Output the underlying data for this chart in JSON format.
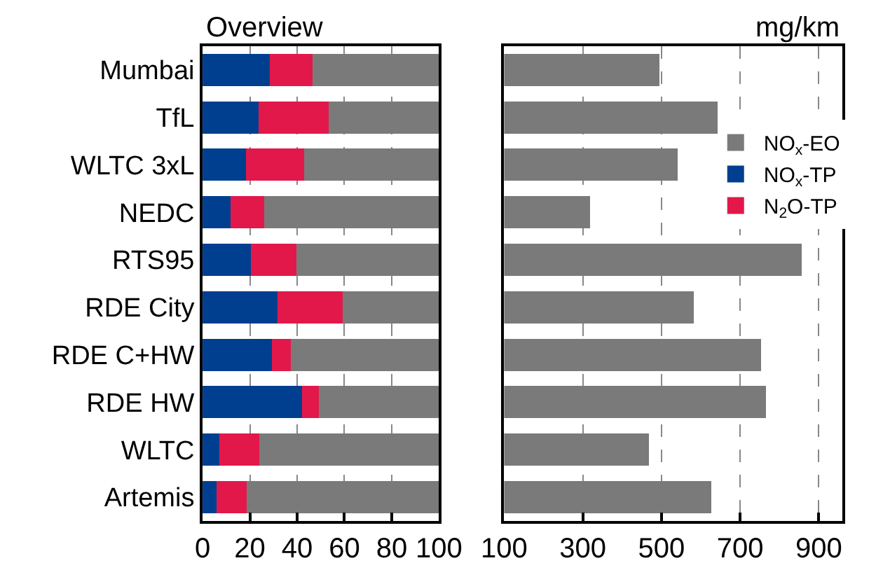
{
  "chart_data": [
    {
      "type": "bar",
      "title": "Overview",
      "orientation": "horizontal",
      "stacked": true,
      "categories": [
        "Mumbai",
        "TfL",
        "WLTC 3xL",
        "NEDC",
        "RTS95",
        "RDE City",
        "RDE C+HW",
        "RDE HW",
        "WLTC",
        "Artemis"
      ],
      "series": [
        {
          "name": "NO$_{x}$-TP",
          "color": "#003f8f",
          "values": [
            28.3,
            23.8,
            18.3,
            11.9,
            20.4,
            31.7,
            29.4,
            42.1,
            7.2,
            5.8
          ]
        },
        {
          "name": "N$_{2}$O-TP",
          "color": "#e2184a",
          "values": [
            18.1,
            29.4,
            24.7,
            14.1,
            19.2,
            27.5,
            8.0,
            7.0,
            16.8,
            12.9
          ]
        },
        {
          "name": "NO$_{x}$-EO",
          "color": "#7a7a7a",
          "values": [
            53.6,
            46.8,
            57.0,
            74.0,
            60.4,
            40.8,
            62.6,
            50.9,
            76.0,
            81.3
          ]
        }
      ],
      "xlim": [
        0,
        100
      ],
      "xticks": [
        0,
        20,
        40,
        60,
        80,
        100
      ],
      "grid": "x",
      "legend": "right"
    },
    {
      "type": "bar",
      "title": "mg/km",
      "orientation": "horizontal",
      "categories": [
        null,
        null,
        null,
        null,
        null,
        null,
        null,
        null,
        null,
        null
      ],
      "series": [
        {
          "color": "#7a7a7a",
          "values": [
            495,
            642,
            541,
            318,
            856,
            582,
            753,
            766,
            468,
            626
          ]
        }
      ],
      "xlim": [
        100,
        960
      ],
      "xticks": [
        100,
        300,
        500,
        700,
        900
      ],
      "grid": "x",
      "tick_labels": "x"
    }
  ]
}
